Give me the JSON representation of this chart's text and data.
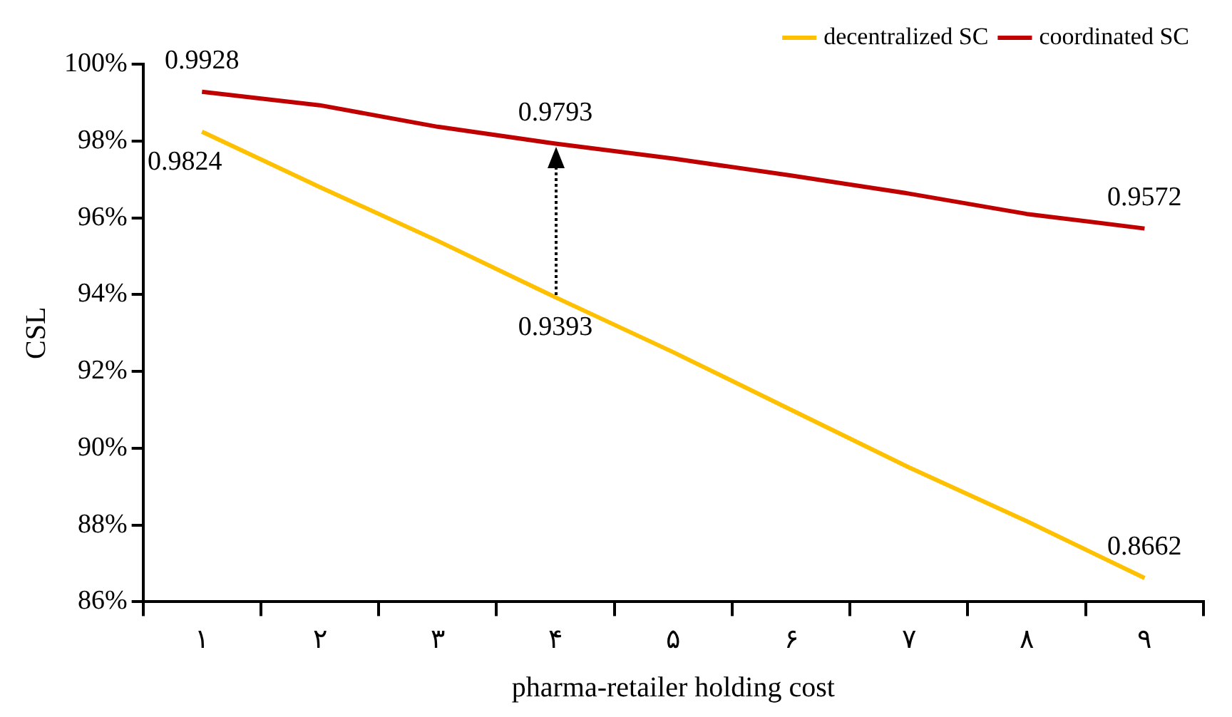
{
  "chart_data": {
    "type": "line",
    "xlabel": "pharma-retailer holding cost",
    "ylabel": "CSL",
    "categories": [
      "۱",
      "۲",
      "۳",
      "۴",
      "۵",
      "۶",
      "۷",
      "۸",
      "۹"
    ],
    "series": [
      {
        "name": "decentralized SC",
        "color": "#ffc000",
        "values": [
          0.9824,
          0.968,
          0.954,
          0.9393,
          0.925,
          0.91,
          0.895,
          0.881,
          0.8662
        ],
        "value_labels": [
          "0.9824",
          null,
          null,
          "0.9393",
          null,
          null,
          null,
          null,
          "0.8662"
        ]
      },
      {
        "name": "coordinated SC",
        "color": "#c00000",
        "values": [
          0.9928,
          0.9893,
          0.9837,
          0.9793,
          0.9754,
          0.971,
          0.9663,
          0.961,
          0.9572
        ],
        "value_labels": [
          "0.9928",
          null,
          null,
          "0.9793",
          null,
          null,
          null,
          null,
          "0.9572"
        ]
      }
    ],
    "ylim": [
      0.86,
      1.0
    ],
    "yticks": [
      {
        "value": 0.86,
        "label": "86%"
      },
      {
        "value": 0.88,
        "label": "88%"
      },
      {
        "value": 0.9,
        "label": "90%"
      },
      {
        "value": 0.92,
        "label": "92%"
      },
      {
        "value": 0.94,
        "label": "94%"
      },
      {
        "value": 0.96,
        "label": "96%"
      },
      {
        "value": 0.98,
        "label": "98%"
      },
      {
        "value": 1.0,
        "label": "100%"
      }
    ],
    "grid": false,
    "legend": "top right",
    "marker": "none",
    "line_style": "solid"
  }
}
